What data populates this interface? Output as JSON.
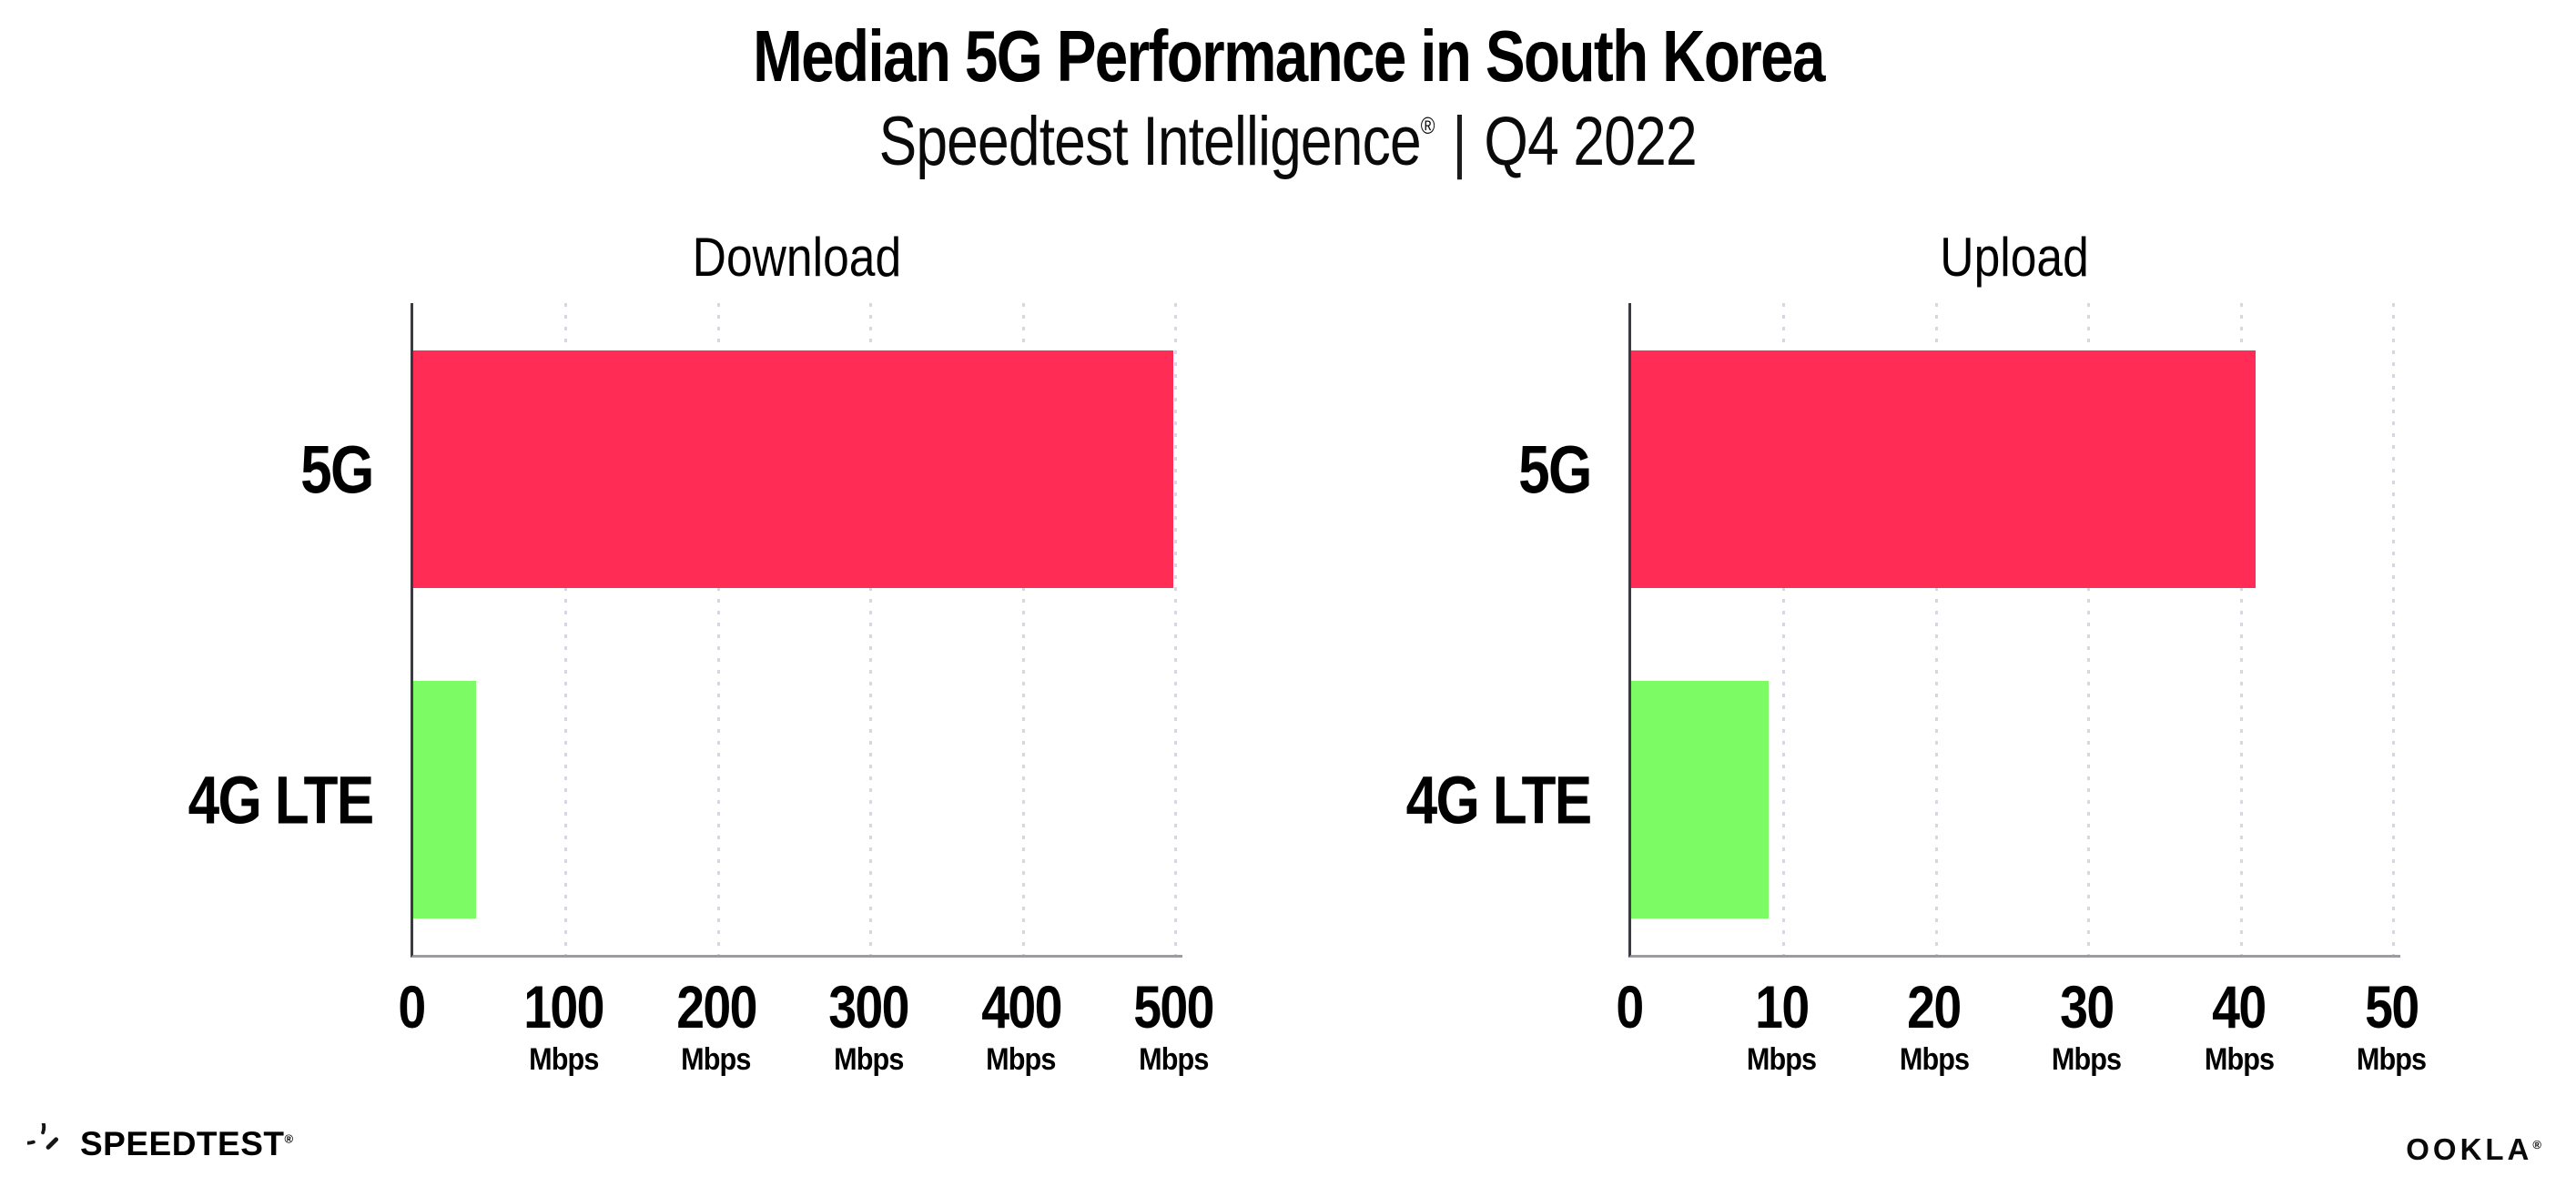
{
  "header": {
    "title": "Median 5G Performance in South Korea",
    "subtitle_brand": "Speedtest Intelligence",
    "subtitle_reg": "®",
    "subtitle_separator": "|",
    "subtitle_period": "Q4 2022"
  },
  "chart_data": [
    {
      "type": "bar",
      "orientation": "horizontal",
      "title": "Download",
      "categories": [
        "5G",
        "4G LTE"
      ],
      "values": [
        499,
        41
      ],
      "unit": "Mbps",
      "xlim": [
        0,
        500
      ],
      "xticks": [
        0,
        100,
        200,
        300,
        400,
        500
      ],
      "xtick_unit_label": "Mbps",
      "bar_colors": [
        "#FF2D55",
        "#7DFB64"
      ],
      "grid": "vertical-dotted",
      "legend": "none"
    },
    {
      "type": "bar",
      "orientation": "horizontal",
      "title": "Upload",
      "categories": [
        "5G",
        "4G LTE"
      ],
      "values": [
        41,
        9
      ],
      "unit": "Mbps",
      "xlim": [
        0,
        50
      ],
      "xticks": [
        0,
        10,
        20,
        30,
        40,
        50
      ],
      "xtick_unit_label": "Mbps",
      "bar_colors": [
        "#FF2D55",
        "#7DFB64"
      ],
      "grid": "vertical-dotted",
      "legend": "none"
    }
  ],
  "footer": {
    "speedtest_text": "SPEEDTEST",
    "speedtest_mark": "®",
    "ookla_text": "OOKLA",
    "ookla_mark": "®"
  },
  "colors": {
    "bar_5g": "#FF2D55",
    "bar_4g_lte": "#7DFB64",
    "gridline": "#D7D7E1",
    "y_axis": "#3A3A42",
    "x_axis": "#9B9BA3",
    "background": "#FFFFFF",
    "text": "#000000"
  }
}
